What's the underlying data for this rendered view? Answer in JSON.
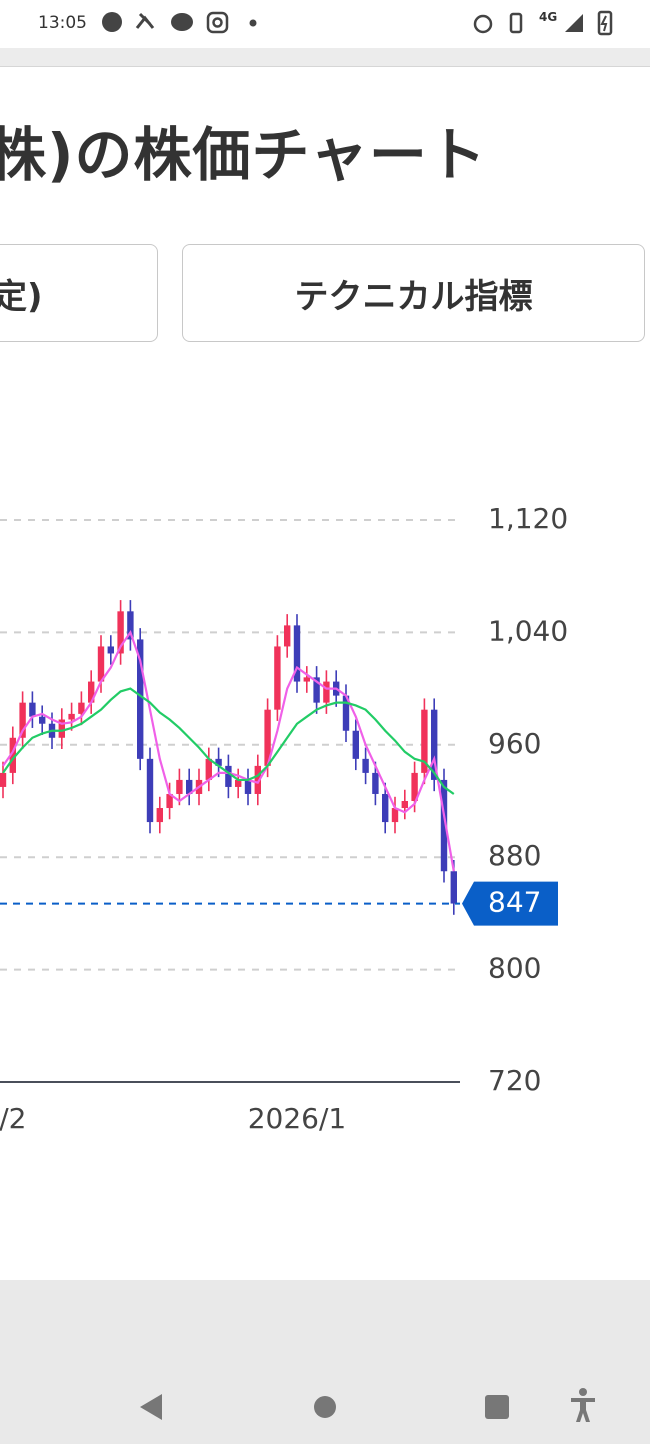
{
  "status_bar": {
    "time": "13:05",
    "network": "4G"
  },
  "header": {
    "title": "株)の株価チャート"
  },
  "tabs": [
    "定)",
    "テクニカル指標"
  ],
  "chart_data": {
    "type": "candlestick",
    "categories": [
      null,
      "/2",
      null,
      null,
      null,
      null,
      null,
      null,
      null,
      null,
      null,
      null,
      null,
      null,
      null,
      null,
      null,
      null,
      null,
      null,
      null,
      null,
      null,
      null,
      null,
      null,
      null,
      null,
      null,
      null,
      "2026/1",
      null,
      null,
      null,
      null,
      null,
      null,
      null,
      null,
      null,
      null,
      null,
      null,
      null,
      null,
      null,
      null
    ],
    "open": [
      930,
      940,
      965,
      990,
      980,
      975,
      965,
      978,
      982,
      990,
      1005,
      1030,
      1025,
      1055,
      1035,
      950,
      905,
      915,
      925,
      935,
      925,
      935,
      950,
      945,
      930,
      935,
      925,
      945,
      985,
      1030,
      1045,
      1005,
      1008,
      990,
      1005,
      995,
      970,
      950,
      940,
      925,
      905,
      915,
      920,
      940,
      985,
      935,
      870
    ],
    "high": [
      948,
      973,
      998,
      998,
      988,
      983,
      986,
      990,
      998,
      1013,
      1038,
      1038,
      1063,
      1063,
      1043,
      958,
      923,
      933,
      943,
      943,
      943,
      958,
      958,
      953,
      943,
      943,
      953,
      993,
      1038,
      1053,
      1053,
      1016,
      1016,
      1013,
      1013,
      1003,
      978,
      958,
      948,
      933,
      923,
      928,
      948,
      993,
      993,
      943,
      878
    ],
    "low": [
      922,
      932,
      957,
      972,
      967,
      957,
      957,
      970,
      974,
      982,
      997,
      1017,
      1017,
      1027,
      942,
      897,
      897,
      907,
      917,
      917,
      917,
      927,
      937,
      922,
      922,
      917,
      917,
      937,
      977,
      1022,
      997,
      997,
      982,
      982,
      987,
      962,
      942,
      932,
      917,
      897,
      897,
      907,
      912,
      932,
      927,
      862,
      839
    ],
    "close": [
      940,
      965,
      990,
      980,
      975,
      965,
      978,
      982,
      990,
      1005,
      1030,
      1025,
      1055,
      1035,
      950,
      905,
      915,
      925,
      935,
      925,
      935,
      950,
      945,
      930,
      935,
      925,
      945,
      985,
      1030,
      1045,
      1005,
      1008,
      990,
      1005,
      995,
      970,
      950,
      940,
      925,
      905,
      915,
      920,
      940,
      985,
      935,
      870,
      847
    ],
    "up_color": "#f0325a",
    "down_color": "#3d3db8",
    "lines": [
      {
        "color": "#f060e8",
        "values": [
          945,
          955,
          970,
          980,
          982,
          978,
          975,
          976,
          980,
          990,
          1005,
          1015,
          1030,
          1040,
          1020,
          985,
          950,
          925,
          920,
          925,
          930,
          935,
          940,
          940,
          938,
          935,
          933,
          945,
          970,
          1000,
          1015,
          1010,
          1005,
          1000,
          1000,
          995,
          980,
          960,
          945,
          930,
          915,
          912,
          918,
          935,
          950,
          910,
          870
        ]
      },
      {
        "color": "#22cc66",
        "values": [
          940,
          950,
          958,
          965,
          968,
          970,
          970,
          972,
          975,
          980,
          985,
          992,
          998,
          1000,
          995,
          990,
          983,
          978,
          972,
          965,
          958,
          950,
          945,
          940,
          935,
          935,
          938,
          945,
          955,
          965,
          975,
          980,
          985,
          988,
          990,
          990,
          988,
          985,
          978,
          970,
          963,
          955,
          950,
          948,
          940,
          930,
          925
        ]
      }
    ],
    "last_price": 847,
    "last_price_color": "#0a5fc8",
    "ylim": [
      720,
      1120
    ],
    "yticks": [
      720,
      800,
      880,
      960,
      {
        "value": 1040,
        "label": "1,040"
      },
      {
        "value": 1120,
        "label": "1,120"
      }
    ],
    "grid": true
  }
}
